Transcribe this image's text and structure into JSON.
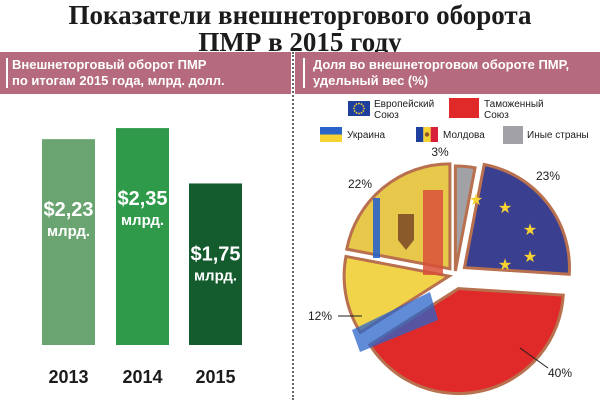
{
  "title": {
    "line1": "Показатели внешнеторгового оборота",
    "line2": "ПМР в 2015 году"
  },
  "left_panel": {
    "header_line1": "Внешнеторговый оборот ПМР",
    "header_line2": "по итогам 2015 года, млрд. долл."
  },
  "right_panel": {
    "header_line1": "Доля во внешнеторговом обороте ПМР,",
    "header_line2": "удельный вес (%)"
  },
  "chart_data": [
    {
      "type": "bar",
      "title": "Внешнеторговый оборот ПМР по итогам 2015 года, млрд. долл.",
      "categories": [
        "2013",
        "2014",
        "2015"
      ],
      "values": [
        2.23,
        2.35,
        1.75
      ],
      "value_labels": [
        "$2,23",
        "$2,35",
        "$1,75"
      ],
      "unit_label": "млрд.",
      "colors": [
        "#6aa571",
        "#2e9a4a",
        "#145c2e"
      ]
    },
    {
      "type": "pie",
      "title": "Доля во внешнеторговом обороте ПМР, удельный вес (%)",
      "legend_position": "top",
      "slices": [
        {
          "name": "Европейский Союз",
          "value": 23,
          "label": "23%",
          "color": "#3a3f8f",
          "icon": "eu-flag-icon"
        },
        {
          "name": "Таможенный Союз",
          "value": 40,
          "label": "40%",
          "color": "#e02a2a",
          "icon": "red-square-icon"
        },
        {
          "name": "Украина",
          "value": 12,
          "label": "12%",
          "color": "#f2d44a",
          "icon": "ukraine-flag-icon"
        },
        {
          "name": "Молдова",
          "value": 22,
          "label": "22%",
          "color": "#e8c84a",
          "icon": "moldova-flag-icon"
        },
        {
          "name": "Иные страны",
          "value": 3,
          "label": "3%",
          "color": "#a2a2a6",
          "icon": "gray-square-icon"
        }
      ]
    }
  ]
}
